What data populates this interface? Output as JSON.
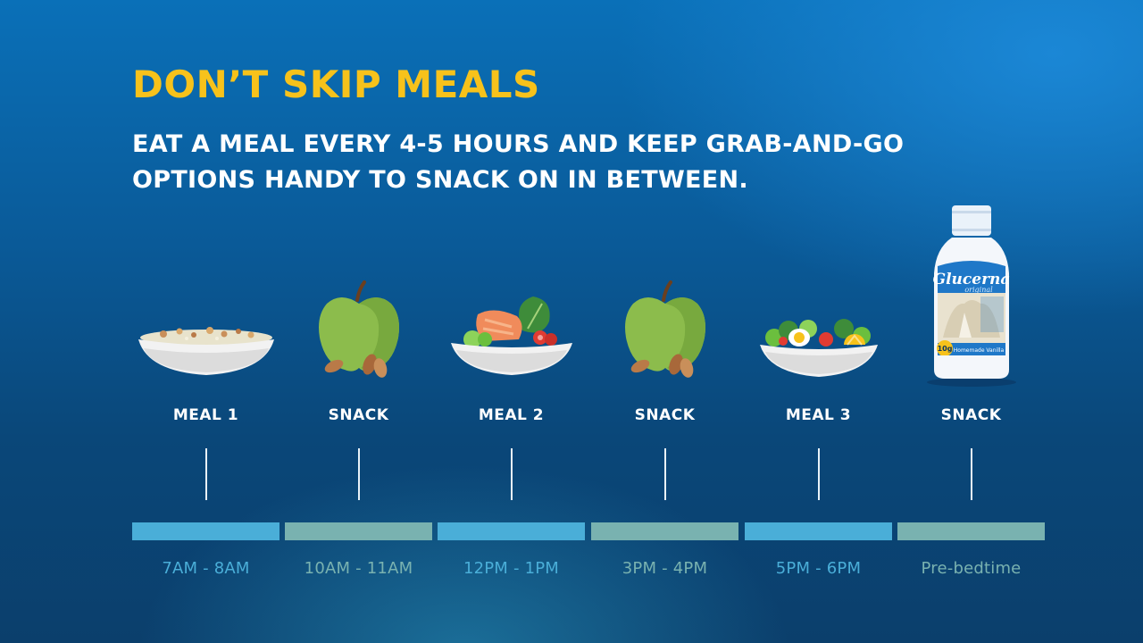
{
  "heading": "DON’T SKIP MEALS",
  "subheading": "EAT A MEAL EVERY 4-5 HOURS AND KEEP GRAB-AND-GO OPTIONS HANDY TO SNACK ON IN BETWEEN.",
  "schedule": [
    {
      "label": "MEAL 1",
      "time": "7AM - 8AM",
      "icon": "cereal-bowl-icon"
    },
    {
      "label": "SNACK",
      "time": "10AM - 11AM",
      "icon": "apple-almonds-icon"
    },
    {
      "label": "MEAL 2",
      "time": "12PM - 1PM",
      "icon": "salmon-salad-bowl-icon"
    },
    {
      "label": "SNACK",
      "time": "3PM - 4PM",
      "icon": "apple-almonds-icon"
    },
    {
      "label": "MEAL 3",
      "time": "5PM - 6PM",
      "icon": "egg-salad-bowl-icon"
    },
    {
      "label": "SNACK",
      "time": "Pre-bedtime",
      "icon": "shake-bottle-icon"
    }
  ],
  "product": {
    "brand": "Glucerna",
    "variant": "original",
    "protein_badge": "10g",
    "flavor": "Homemade Vanilla"
  },
  "colors": {
    "heading": "#f7c21b",
    "meal_bar": "#4aaed8",
    "snack_bar": "#79b2b0"
  }
}
